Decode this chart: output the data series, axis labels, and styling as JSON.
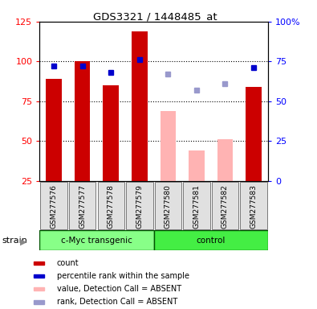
{
  "title": "GDS3321 / 1448485_at",
  "samples": [
    "GSM277576",
    "GSM277577",
    "GSM277578",
    "GSM277579",
    "GSM277580",
    "GSM277581",
    "GSM277582",
    "GSM277583"
  ],
  "count_values": [
    89,
    100,
    85,
    119,
    null,
    null,
    null,
    84
  ],
  "rank_values": [
    72,
    72,
    68,
    76,
    null,
    null,
    null,
    71
  ],
  "count_absent": [
    null,
    null,
    null,
    null,
    69,
    44,
    51,
    null
  ],
  "rank_absent": [
    null,
    null,
    null,
    null,
    67,
    57,
    61,
    null
  ],
  "bar_color_present": "#cc0000",
  "bar_color_absent": "#ffb3b3",
  "rank_color_present": "#0000cc",
  "rank_color_absent": "#9999cc",
  "ylim_left": [
    25,
    125
  ],
  "ylim_right": [
    0,
    100
  ],
  "right_yticks": [
    0,
    25,
    50,
    75,
    100
  ],
  "right_yticklabels": [
    "0",
    "25",
    "50",
    "75",
    "100%"
  ],
  "left_yticks": [
    25,
    50,
    75,
    100,
    125
  ],
  "left_yticklabels": [
    "25",
    "50",
    "75",
    "100",
    "125"
  ],
  "group1_label": "c-Myc transgenic",
  "group2_label": "control",
  "group1_color": "#88ff88",
  "group2_color": "#44ee44",
  "legend_items": [
    {
      "label": "count",
      "color": "#cc0000"
    },
    {
      "label": "percentile rank within the sample",
      "color": "#0000cc"
    },
    {
      "label": "value, Detection Call = ABSENT",
      "color": "#ffb3b3"
    },
    {
      "label": "rank, Detection Call = ABSENT",
      "color": "#9999cc"
    }
  ],
  "bar_width": 0.55
}
